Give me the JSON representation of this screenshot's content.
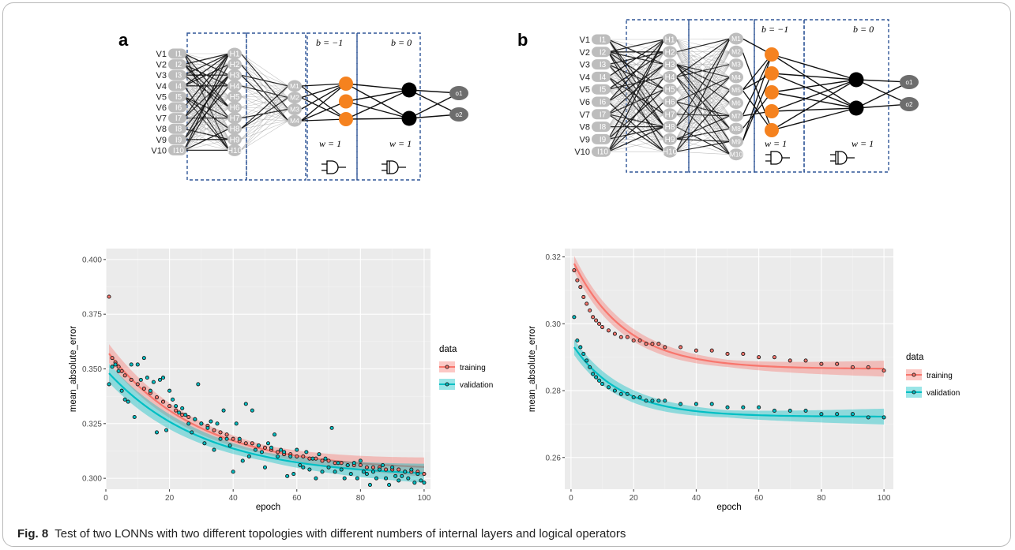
{
  "figure": {
    "caption_label": "Fig. 8",
    "caption_text": "Test of two LONNs with two different topologies with different numbers of internal layers and logical operators"
  },
  "panel_a": {
    "label": "a",
    "input_v": [
      "V1",
      "V2",
      "V3",
      "V4",
      "V5",
      "V6",
      "V7",
      "V8",
      "V9",
      "V10"
    ],
    "input_i": [
      "I1",
      "I2",
      "I3",
      "I4",
      "I5",
      "I6",
      "I7",
      "I8",
      "I9",
      "I10"
    ],
    "hidden": [
      "H1",
      "H2",
      "H3",
      "H4",
      "H5",
      "H6",
      "H7",
      "H8",
      "H9",
      "H10"
    ],
    "middle": [
      "M1",
      "M2",
      "M3",
      "M4"
    ],
    "outputs": [
      "o1",
      "o2"
    ],
    "bias_or": "b = −1",
    "bias_and": "b = 0",
    "weight_or": "w = 1",
    "weight_and": "w = 1",
    "or_count": 3,
    "and_count": 2
  },
  "panel_b": {
    "label": "b",
    "input_v": [
      "V1",
      "V2",
      "V3",
      "V4",
      "V5",
      "V6",
      "V7",
      "V8",
      "V9",
      "V10"
    ],
    "input_i": [
      "I1",
      "I2",
      "I3",
      "I4",
      "I5",
      "I6",
      "I7",
      "I8",
      "I9",
      "I10"
    ],
    "hidden": [
      "H1",
      "H2",
      "H3",
      "H4",
      "H5",
      "H6",
      "H7",
      "H8",
      "H9",
      "H10"
    ],
    "middle": [
      "M1",
      "M2",
      "M3",
      "M4",
      "M5",
      "M6",
      "M7",
      "M8",
      "M9",
      "M10"
    ],
    "outputs": [
      "o1",
      "o2"
    ],
    "bias_or": "b = −1",
    "bias_and": "b = 0",
    "weight_or": "w = 1",
    "weight_and": "w = 1",
    "or_count": 5,
    "and_count": 2
  },
  "colors": {
    "training": "#f8766d",
    "validation": "#00bfc4",
    "panel_bg": "#ebebeb",
    "node_grey": "#bdbdbd",
    "or_node": "#f5821f",
    "and_node": "#000000",
    "dashed_box": "#2f5597"
  },
  "chart_data": [
    {
      "type": "scatter",
      "xlabel": "epoch",
      "ylabel": "mean_absolute_error",
      "xlim": [
        0,
        102
      ],
      "ylim": [
        0.295,
        0.405
      ],
      "x_ticks": [
        "0",
        "20",
        "40",
        "60",
        "80",
        "100"
      ],
      "y_ticks": [
        "0.300",
        "0.325",
        "0.350",
        "0.375",
        "0.400"
      ],
      "legend_title": "data",
      "legend_position": "right",
      "series": [
        {
          "name": "training",
          "smooth_start": 0.357,
          "smooth_end": 0.3035,
          "smooth_k": 0.035,
          "points": [
            [
              1,
              0.383
            ],
            [
              2,
              0.355
            ],
            [
              3,
              0.353
            ],
            [
              4,
              0.351
            ],
            [
              5,
              0.349
            ],
            [
              6,
              0.347
            ],
            [
              8,
              0.345
            ],
            [
              10,
              0.343
            ],
            [
              12,
              0.341
            ],
            [
              14,
              0.339
            ],
            [
              16,
              0.337
            ],
            [
              18,
              0.335
            ],
            [
              20,
              0.333
            ],
            [
              22,
              0.331
            ],
            [
              24,
              0.329
            ],
            [
              26,
              0.328
            ],
            [
              28,
              0.327
            ],
            [
              30,
              0.325
            ],
            [
              32,
              0.324
            ],
            [
              34,
              0.322
            ],
            [
              36,
              0.321
            ],
            [
              38,
              0.32
            ],
            [
              40,
              0.318
            ],
            [
              42,
              0.317
            ],
            [
              44,
              0.316
            ],
            [
              46,
              0.316
            ],
            [
              48,
              0.315
            ],
            [
              50,
              0.314
            ],
            [
              52,
              0.313
            ],
            [
              54,
              0.312
            ],
            [
              56,
              0.311
            ],
            [
              58,
              0.311
            ],
            [
              60,
              0.31
            ],
            [
              62,
              0.31
            ],
            [
              64,
              0.309
            ],
            [
              66,
              0.309
            ],
            [
              68,
              0.308
            ],
            [
              70,
              0.308
            ],
            [
              72,
              0.307
            ],
            [
              74,
              0.307
            ],
            [
              76,
              0.306
            ],
            [
              78,
              0.306
            ],
            [
              80,
              0.306
            ],
            [
              82,
              0.305
            ],
            [
              84,
              0.305
            ],
            [
              86,
              0.305
            ],
            [
              88,
              0.304
            ],
            [
              90,
              0.304
            ],
            [
              92,
              0.304
            ],
            [
              94,
              0.303
            ],
            [
              96,
              0.303
            ],
            [
              98,
              0.303
            ],
            [
              100,
              0.302
            ]
          ]
        },
        {
          "name": "validation",
          "smooth_start": 0.348,
          "smooth_end": 0.3005,
          "smooth_k": 0.033,
          "points": [
            [
              1,
              0.343
            ],
            [
              2,
              0.351
            ],
            [
              3,
              0.352
            ],
            [
              4,
              0.349
            ],
            [
              5,
              0.34
            ],
            [
              6,
              0.336
            ],
            [
              7,
              0.335
            ],
            [
              8,
              0.352
            ],
            [
              9,
              0.328
            ],
            [
              10,
              0.352
            ],
            [
              11,
              0.345
            ],
            [
              12,
              0.355
            ],
            [
              13,
              0.346
            ],
            [
              14,
              0.34
            ],
            [
              15,
              0.344
            ],
            [
              16,
              0.321
            ],
            [
              17,
              0.345
            ],
            [
              18,
              0.346
            ],
            [
              19,
              0.322
            ],
            [
              20,
              0.34
            ],
            [
              21,
              0.336
            ],
            [
              22,
              0.333
            ],
            [
              23,
              0.33
            ],
            [
              24,
              0.332
            ],
            [
              25,
              0.329
            ],
            [
              26,
              0.325
            ],
            [
              27,
              0.321
            ],
            [
              28,
              0.327
            ],
            [
              29,
              0.343
            ],
            [
              30,
              0.325
            ],
            [
              31,
              0.316
            ],
            [
              32,
              0.323
            ],
            [
              33,
              0.326
            ],
            [
              34,
              0.313
            ],
            [
              35,
              0.325
            ],
            [
              36,
              0.318
            ],
            [
              37,
              0.331
            ],
            [
              38,
              0.318
            ],
            [
              39,
              0.315
            ],
            [
              40,
              0.303
            ],
            [
              41,
              0.325
            ],
            [
              42,
              0.318
            ],
            [
              43,
              0.308
            ],
            [
              44,
              0.334
            ],
            [
              45,
              0.31
            ],
            [
              46,
              0.331
            ],
            [
              47,
              0.313
            ],
            [
              48,
              0.315
            ],
            [
              49,
              0.312
            ],
            [
              50,
              0.305
            ],
            [
              51,
              0.316
            ],
            [
              52,
              0.314
            ],
            [
              53,
              0.32
            ],
            [
              54,
              0.31
            ],
            [
              55,
              0.313
            ],
            [
              56,
              0.312
            ],
            [
              57,
              0.301
            ],
            [
              58,
              0.31
            ],
            [
              59,
              0.302
            ],
            [
              60,
              0.313
            ],
            [
              61,
              0.306
            ],
            [
              62,
              0.305
            ],
            [
              63,
              0.312
            ],
            [
              64,
              0.304
            ],
            [
              65,
              0.309
            ],
            [
              66,
              0.3
            ],
            [
              67,
              0.311
            ],
            [
              68,
              0.303
            ],
            [
              69,
              0.309
            ],
            [
              70,
              0.305
            ],
            [
              71,
              0.323
            ],
            [
              72,
              0.303
            ],
            [
              73,
              0.307
            ],
            [
              74,
              0.304
            ],
            [
              75,
              0.3
            ],
            [
              76,
              0.306
            ],
            [
              77,
              0.302
            ],
            [
              78,
              0.307
            ],
            [
              79,
              0.3
            ],
            [
              80,
              0.308
            ],
            [
              81,
              0.303
            ],
            [
              82,
              0.302
            ],
            [
              83,
              0.297
            ],
            [
              84,
              0.303
            ],
            [
              85,
              0.3
            ],
            [
              86,
              0.304
            ],
            [
              87,
              0.306
            ],
            [
              88,
              0.3
            ],
            [
              89,
              0.297
            ],
            [
              90,
              0.305
            ],
            [
              91,
              0.301
            ],
            [
              92,
              0.299
            ],
            [
              93,
              0.301
            ],
            [
              94,
              0.303
            ],
            [
              95,
              0.3
            ],
            [
              96,
              0.304
            ],
            [
              97,
              0.298
            ],
            [
              98,
              0.302
            ],
            [
              99,
              0.299
            ],
            [
              100,
              0.298
            ]
          ]
        }
      ]
    },
    {
      "type": "scatter",
      "xlabel": "epoch",
      "ylabel": "mean_absolute_error",
      "xlim": [
        -2,
        103
      ],
      "ylim": [
        0.2505,
        0.3225
      ],
      "x_ticks": [
        "0",
        "20",
        "40",
        "60",
        "80",
        "100"
      ],
      "y_ticks": [
        "0.26",
        "0.28",
        "0.30",
        "0.32"
      ],
      "legend_title": "data",
      "legend_position": "right",
      "series": [
        {
          "name": "training",
          "smooth_start": 0.318,
          "smooth_end": 0.2865,
          "smooth_k": 0.06,
          "points": [
            [
              1,
              0.316
            ],
            [
              2,
              0.313
            ],
            [
              3,
              0.311
            ],
            [
              4,
              0.308
            ],
            [
              5,
              0.306
            ],
            [
              6,
              0.304
            ],
            [
              7,
              0.302
            ],
            [
              8,
              0.301
            ],
            [
              9,
              0.3
            ],
            [
              10,
              0.299
            ],
            [
              12,
              0.298
            ],
            [
              14,
              0.297
            ],
            [
              16,
              0.296
            ],
            [
              18,
              0.296
            ],
            [
              20,
              0.295
            ],
            [
              22,
              0.295
            ],
            [
              24,
              0.294
            ],
            [
              26,
              0.294
            ],
            [
              28,
              0.294
            ],
            [
              30,
              0.293
            ],
            [
              35,
              0.293
            ],
            [
              40,
              0.292
            ],
            [
              45,
              0.292
            ],
            [
              50,
              0.291
            ],
            [
              55,
              0.291
            ],
            [
              60,
              0.29
            ],
            [
              65,
              0.29
            ],
            [
              70,
              0.289
            ],
            [
              75,
              0.289
            ],
            [
              80,
              0.288
            ],
            [
              85,
              0.288
            ],
            [
              90,
              0.287
            ],
            [
              95,
              0.287
            ],
            [
              100,
              0.286
            ]
          ]
        },
        {
          "name": "validation",
          "smooth_start": 0.293,
          "smooth_end": 0.2722,
          "smooth_k": 0.065,
          "points": [
            [
              1,
              0.302
            ],
            [
              2,
              0.295
            ],
            [
              3,
              0.293
            ],
            [
              4,
              0.291
            ],
            [
              5,
              0.289
            ],
            [
              6,
              0.287
            ],
            [
              7,
              0.285
            ],
            [
              8,
              0.284
            ],
            [
              9,
              0.283
            ],
            [
              10,
              0.282
            ],
            [
              12,
              0.281
            ],
            [
              14,
              0.28
            ],
            [
              16,
              0.279
            ],
            [
              18,
              0.279
            ],
            [
              20,
              0.278
            ],
            [
              22,
              0.278
            ],
            [
              24,
              0.277
            ],
            [
              26,
              0.277
            ],
            [
              28,
              0.277
            ],
            [
              30,
              0.277
            ],
            [
              35,
              0.276
            ],
            [
              40,
              0.276
            ],
            [
              45,
              0.276
            ],
            [
              50,
              0.275
            ],
            [
              55,
              0.275
            ],
            [
              60,
              0.275
            ],
            [
              65,
              0.274
            ],
            [
              70,
              0.274
            ],
            [
              75,
              0.274
            ],
            [
              80,
              0.273
            ],
            [
              85,
              0.273
            ],
            [
              90,
              0.273
            ],
            [
              95,
              0.272
            ],
            [
              100,
              0.272
            ]
          ]
        }
      ]
    }
  ]
}
